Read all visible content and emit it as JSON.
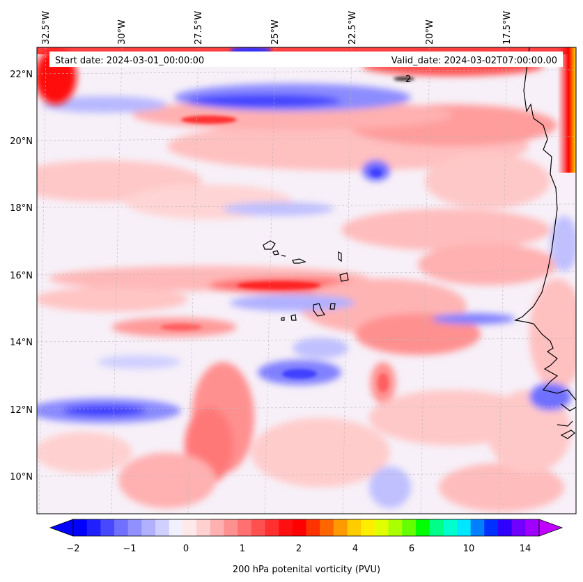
{
  "header": {
    "start_date": "Start date: 2024-03-01_00:00:00",
    "valid_date": "Valid_date: 2024-03-02T07:00:00.00"
  },
  "map": {
    "lon_labels": [
      "32.5°W",
      "30°W",
      "27.5°W",
      "25°W",
      "22.5°W",
      "20°W",
      "17.5°W"
    ],
    "lat_labels": [
      "22°N",
      "20°N",
      "18°N",
      "16°N",
      "14°N",
      "12°N",
      "10°N"
    ],
    "contour_label": "2",
    "extent": {
      "lon_min": -33,
      "lon_max": -15.5,
      "lat_min": 8.9,
      "lat_max": 22.8
    },
    "colors": {
      "coast": "#000000",
      "grid": "#b0b0b0"
    }
  },
  "colorbar": {
    "label": "200 hPa potenital vorticity (PVU)",
    "tick_labels": [
      "−2",
      "−1",
      "0",
      "1",
      "2",
      "4",
      "6",
      "10",
      "14"
    ],
    "colors": [
      "#0000ff",
      "#2020ff",
      "#4848ff",
      "#7070ff",
      "#9090ff",
      "#b0b0ff",
      "#d0d0ff",
      "#f0f0ff",
      "#ffe8e8",
      "#ffd0d0",
      "#ffb0b0",
      "#ff9090",
      "#ff7070",
      "#ff5050",
      "#ff3030",
      "#ff1010",
      "#ff0000",
      "#ff3300",
      "#ff6600",
      "#ff9900",
      "#ffcc00",
      "#ffee00",
      "#e0ff00",
      "#aaff00",
      "#66ff00",
      "#00ff00",
      "#00ff88",
      "#00ffcc",
      "#00e8ff",
      "#0080ff",
      "#0030ff",
      "#3000ff",
      "#7000ff",
      "#a000ff"
    ]
  }
}
